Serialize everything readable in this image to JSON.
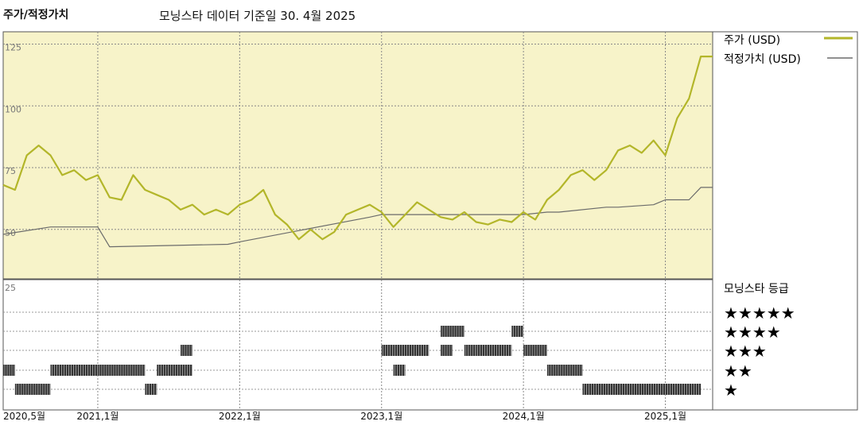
{
  "header": {
    "title": "주가/적정가치",
    "subtitle": "모닝스타 데이터 기준일 30. 4월 2025"
  },
  "legend": {
    "price_label": "주가 (USD)",
    "fair_label": "적정가치 (USD)",
    "rating_title": "모닝스타 등급",
    "star_rows": [
      "★★★★★",
      "★★★★",
      "★★★",
      "★★",
      "★"
    ]
  },
  "colors": {
    "price": "#b3b62a",
    "fair": "#6b6b6b",
    "panel_bg": "#f7f3c9",
    "rating_bar": "#333333"
  },
  "chart_data": [
    {
      "type": "line",
      "x_ticks": [
        "2020,5월",
        "2021,1월",
        "2022,1월",
        "2023,1월",
        "2024,1월",
        "2025,1월"
      ],
      "y_ticks": [
        50,
        75,
        100,
        125
      ],
      "ylim": [
        30,
        130
      ],
      "series": [
        {
          "name": "주가 (USD)",
          "x": [
            "2020-05",
            "2020-06",
            "2020-07",
            "2020-08",
            "2020-09",
            "2020-10",
            "2020-11",
            "2020-12",
            "2021-01",
            "2021-02",
            "2021-03",
            "2021-04",
            "2021-05",
            "2021-06",
            "2021-07",
            "2021-08",
            "2021-09",
            "2021-10",
            "2021-11",
            "2021-12",
            "2022-01",
            "2022-02",
            "2022-03",
            "2022-04",
            "2022-05",
            "2022-06",
            "2022-07",
            "2022-08",
            "2022-09",
            "2022-10",
            "2022-11",
            "2022-12",
            "2023-01",
            "2023-02",
            "2023-03",
            "2023-04",
            "2023-05",
            "2023-06",
            "2023-07",
            "2023-08",
            "2023-09",
            "2023-10",
            "2023-11",
            "2023-12",
            "2024-01",
            "2024-02",
            "2024-03",
            "2024-04",
            "2024-05",
            "2024-06",
            "2024-07",
            "2024-08",
            "2024-09",
            "2024-10",
            "2024-11",
            "2024-12",
            "2025-01",
            "2025-02",
            "2025-03",
            "2025-04"
          ],
          "values": [
            68,
            66,
            80,
            84,
            80,
            72,
            74,
            70,
            72,
            63,
            62,
            72,
            66,
            64,
            62,
            58,
            60,
            56,
            58,
            56,
            60,
            62,
            66,
            56,
            52,
            46,
            50,
            46,
            49,
            56,
            58,
            60,
            57,
            51,
            56,
            61,
            58,
            55,
            54,
            57,
            53,
            52,
            54,
            53,
            57,
            54,
            62,
            66,
            72,
            74,
            70,
            74,
            82,
            84,
            81,
            86,
            80,
            95,
            103,
            120
          ]
        },
        {
          "name": "적정가치 (USD)",
          "x": [
            "2020-05",
            "2020-09",
            "2021-01",
            "2021-02",
            "2021-12",
            "2022-01",
            "2022-12",
            "2023-01",
            "2023-12",
            "2024-01",
            "2024-03",
            "2024-04",
            "2024-08",
            "2024-09",
            "2024-12",
            "2025-01",
            "2025-03",
            "2025-04"
          ],
          "values": [
            48,
            51,
            51,
            43,
            44,
            45,
            55,
            56,
            56,
            56,
            57,
            57,
            59,
            59,
            60,
            62,
            62,
            67
          ]
        }
      ]
    },
    {
      "type": "bar",
      "title": "모닝스타 등급",
      "levels": [
        1,
        2,
        3,
        4,
        5
      ],
      "segments": [
        {
          "start": "2020-05",
          "end": "2020-06",
          "stars": 2
        },
        {
          "start": "2020-06",
          "end": "2020-09",
          "stars": 1
        },
        {
          "start": "2020-09",
          "end": "2021-01",
          "stars": 2
        },
        {
          "start": "2021-01",
          "end": "2021-05",
          "stars": 2
        },
        {
          "start": "2021-05",
          "end": "2021-06",
          "stars": 1
        },
        {
          "start": "2021-06",
          "end": "2021-09",
          "stars": 2
        },
        {
          "start": "2021-08",
          "end": "2021-09",
          "stars": 3
        },
        {
          "start": "2023-01",
          "end": "2023-02",
          "stars": 3
        },
        {
          "start": "2023-02",
          "end": "2023-03",
          "stars": 2
        },
        {
          "start": "2023-02",
          "end": "2023-05",
          "stars": 3
        },
        {
          "start": "2023-06",
          "end": "2023-07",
          "stars": 3
        },
        {
          "start": "2023-06",
          "end": "2023-08",
          "stars": 4
        },
        {
          "start": "2023-08",
          "end": "2023-09",
          "stars": 3
        },
        {
          "start": "2023-09",
          "end": "2023-12",
          "stars": 3
        },
        {
          "start": "2023-12",
          "end": "2024-01",
          "stars": 4
        },
        {
          "start": "2024-01",
          "end": "2024-03",
          "stars": 3
        },
        {
          "start": "2024-03",
          "end": "2024-06",
          "stars": 2
        },
        {
          "start": "2024-06",
          "end": "2025-04",
          "stars": 1
        }
      ]
    }
  ]
}
